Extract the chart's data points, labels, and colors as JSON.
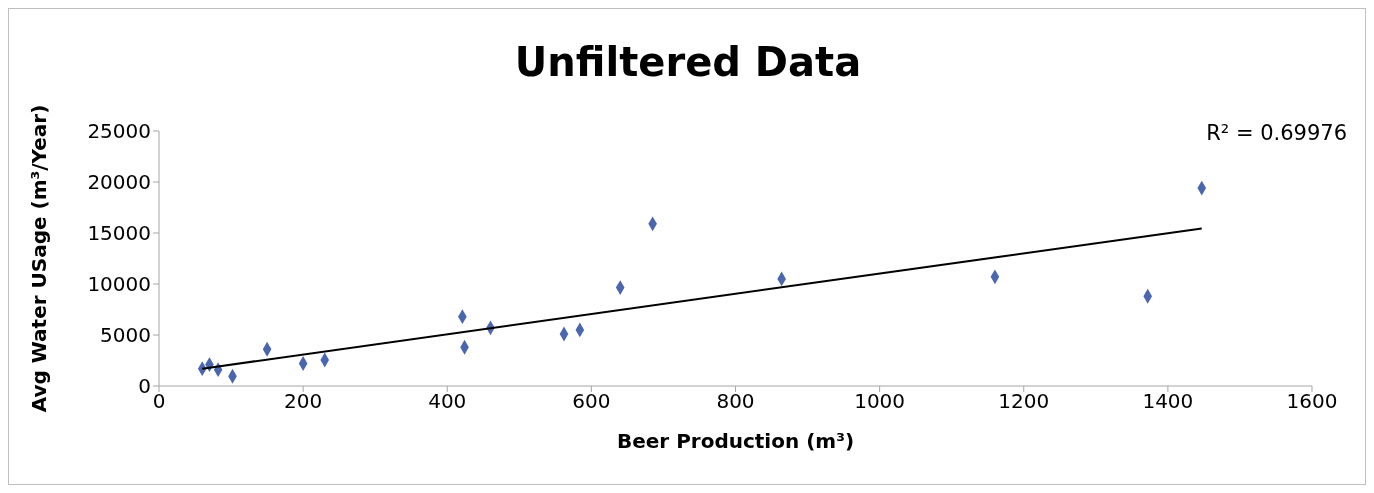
{
  "chart_data": {
    "type": "scatter",
    "title": "Unfiltered Data",
    "xlabel": "Beer Production (m³)",
    "ylabel": "Avg Water USage (m³/Year)",
    "annotations": [
      "R² = 0.69976"
    ],
    "marker": "diamond",
    "xlim": [
      0,
      1600
    ],
    "xticks": [
      0,
      200,
      400,
      600,
      800,
      1000,
      1200,
      1400,
      1600
    ],
    "ylim": [
      0,
      25000
    ],
    "yticks": [
      0,
      5000,
      10000,
      15000,
      20000,
      25000
    ],
    "series": [
      {
        "color": "#4a66ac",
        "x": [
          60,
          70,
          82,
          102,
          150,
          200,
          230,
          421,
          424,
          460,
          562,
          584,
          640,
          685,
          864,
          1160,
          1372,
          1447
        ],
        "values": [
          1700,
          2100,
          1600,
          950,
          3600,
          2200,
          2550,
          6800,
          3800,
          5700,
          5100,
          5500,
          9650,
          15900,
          10500,
          10700,
          8800,
          19400
        ]
      },
      {
        "type": "line",
        "color": "#000000",
        "marker": "none",
        "x": [
          60,
          1447
        ],
        "values": [
          1700,
          15450
        ]
      }
    ]
  }
}
